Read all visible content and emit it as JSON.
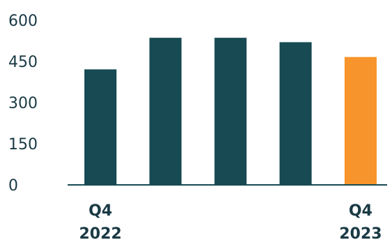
{
  "chart_data": {
    "type": "bar",
    "title": "",
    "xlabel": "",
    "ylabel": "",
    "categories": [
      [
        "Q4",
        "2022"
      ],
      [
        "",
        ""
      ],
      [
        "",
        ""
      ],
      [
        "",
        ""
      ],
      [
        "Q4",
        "2023"
      ]
    ],
    "values": [
      421,
      536,
      536,
      520,
      466
    ],
    "ylim": [
      0,
      600
    ],
    "yticks": [
      "0",
      "150",
      "300",
      "450",
      "600"
    ],
    "ytick_values": [
      0,
      150,
      300,
      450,
      600
    ],
    "grid": false,
    "colors": {
      "bar": "#174a52",
      "highlight": "#f7942b",
      "axis": "#174a52",
      "text": "#1a3a44"
    },
    "highlight_index": 4
  }
}
